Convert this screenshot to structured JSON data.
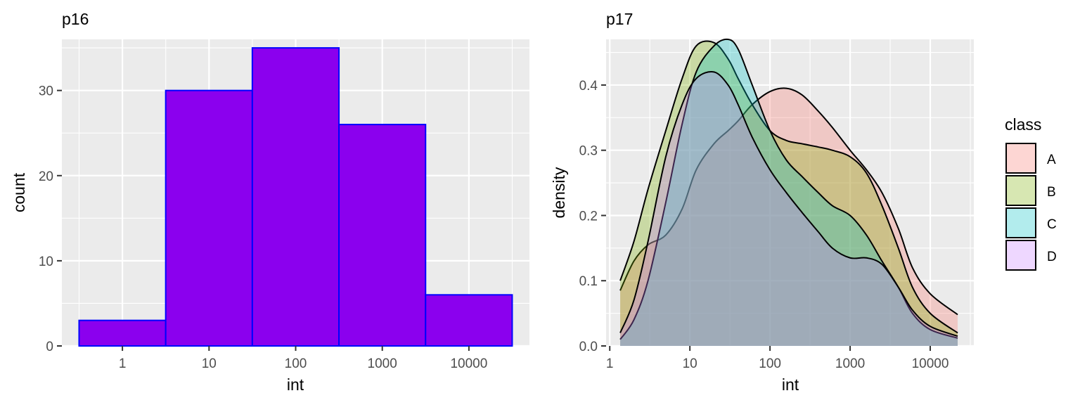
{
  "chart_data": [
    {
      "type": "bar",
      "title": "p16",
      "xlabel": "int",
      "ylabel": "count",
      "x_scale": "log10",
      "x_ticks": [
        "1",
        "10",
        "100",
        "1000",
        "10000"
      ],
      "y_ticks": [
        "0",
        "10",
        "20",
        "30"
      ],
      "xlim": [
        0.2,
        50000
      ],
      "ylim": [
        0,
        36
      ],
      "bar_fill": "#8B00EE",
      "bar_outline": "#0000FF",
      "bins": [
        {
          "x_start": 0.316,
          "x_end": 3.16,
          "count": 3
        },
        {
          "x_start": 3.16,
          "x_end": 31.6,
          "count": 30
        },
        {
          "x_start": 31.6,
          "x_end": 316,
          "count": 35
        },
        {
          "x_start": 316,
          "x_end": 3160,
          "count": 26
        },
        {
          "x_start": 3160,
          "x_end": 31600,
          "count": 6
        }
      ]
    },
    {
      "type": "area",
      "title": "p17",
      "xlabel": "int",
      "ylabel": "density",
      "x_scale": "log10",
      "x_ticks": [
        "1",
        "10",
        "100",
        "1000",
        "10000"
      ],
      "y_ticks": [
        "0.0",
        "0.1",
        "0.2",
        "0.3",
        "0.4"
      ],
      "xlim": [
        0.9,
        35000
      ],
      "ylim": [
        0,
        0.47
      ],
      "legend_title": "class",
      "legend_position": "right",
      "x": [
        1.35,
        2,
        3,
        5,
        8,
        12,
        20,
        30,
        40,
        60,
        100,
        160,
        250,
        400,
        600,
        1000,
        1600,
        2500,
        4000,
        6000,
        10000,
        22000
      ],
      "series": [
        {
          "name": "A",
          "color": "#F8766D",
          "values": [
            0.085,
            0.13,
            0.155,
            0.17,
            0.21,
            0.27,
            0.31,
            0.33,
            0.345,
            0.37,
            0.39,
            0.395,
            0.385,
            0.36,
            0.335,
            0.3,
            0.27,
            0.235,
            0.18,
            0.12,
            0.08,
            0.048
          ]
        },
        {
          "name": "B",
          "color": "#7CAE00",
          "values": [
            0.1,
            0.16,
            0.24,
            0.33,
            0.41,
            0.46,
            0.465,
            0.44,
            0.41,
            0.37,
            0.33,
            0.315,
            0.31,
            0.305,
            0.3,
            0.29,
            0.265,
            0.215,
            0.15,
            0.09,
            0.05,
            0.02
          ]
        },
        {
          "name": "C",
          "color": "#00BFC4",
          "values": [
            0.01,
            0.04,
            0.1,
            0.22,
            0.34,
            0.42,
            0.46,
            0.47,
            0.455,
            0.4,
            0.33,
            0.285,
            0.26,
            0.235,
            0.215,
            0.2,
            0.17,
            0.13,
            0.09,
            0.05,
            0.025,
            0.012
          ]
        },
        {
          "name": "D",
          "color": "#C77CFF",
          "values": [
            0.02,
            0.07,
            0.16,
            0.29,
            0.37,
            0.41,
            0.42,
            0.4,
            0.37,
            0.32,
            0.27,
            0.235,
            0.205,
            0.175,
            0.15,
            0.135,
            0.135,
            0.125,
            0.09,
            0.055,
            0.03,
            0.015
          ]
        }
      ]
    }
  ]
}
